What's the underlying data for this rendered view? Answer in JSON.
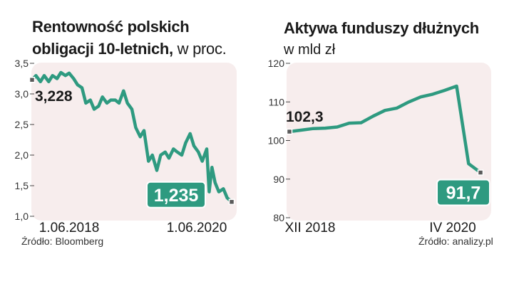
{
  "charts": {
    "left": {
      "title_line1": "Rentowność polskich",
      "title_line2": "obligacji 10-letnich,",
      "title_unit": "w proc.",
      "start_label": "3,228",
      "end_label": "1,235",
      "source": "Źródło: Bloomberg"
    },
    "right": {
      "title": "Aktywa funduszy dłużnych",
      "subtitle": "w mld zł",
      "start_label": "102,3",
      "end_label": "91,7",
      "source": "Źródło: analizy.pl"
    }
  },
  "colors": {
    "line": "#2e9a80",
    "panel_bg": "#f7eded",
    "marker_fill": "#5a5a5a"
  },
  "chart_data": [
    {
      "type": "line",
      "title": "Rentowność polskich obligacji 10-letnich, w proc.",
      "ylim": [
        1.0,
        3.5
      ],
      "yticks": [
        1.0,
        1.5,
        2.0,
        2.5,
        3.0,
        3.5
      ],
      "ytick_labels": [
        "1,0",
        "1,5",
        "2,0",
        "2,5",
        "3,0",
        "3,5"
      ],
      "xlim": [
        "2018-06-01",
        "2020-06-01"
      ],
      "xtick_labels": [
        "1.06.2018",
        "1.06.2020"
      ],
      "series": [
        {
          "x": [
            "2018-06-01",
            "2018-06-15",
            "2018-07-01",
            "2018-07-15",
            "2018-08-01",
            "2018-08-15",
            "2018-09-01",
            "2018-09-15",
            "2018-10-01",
            "2018-10-15",
            "2018-11-01",
            "2018-11-15",
            "2018-12-01",
            "2018-12-15",
            "2019-01-01",
            "2019-01-15",
            "2019-02-01",
            "2019-02-15",
            "2019-03-01",
            "2019-03-15",
            "2019-04-01",
            "2019-04-15",
            "2019-05-01",
            "2019-05-15",
            "2019-06-01",
            "2019-06-15",
            "2019-07-01",
            "2019-07-15",
            "2019-08-01",
            "2019-08-15",
            "2019-09-01",
            "2019-09-15",
            "2019-10-01",
            "2019-10-15",
            "2019-11-01",
            "2019-11-15",
            "2019-12-01",
            "2019-12-15",
            "2020-01-01",
            "2020-01-15",
            "2020-02-01",
            "2020-02-15",
            "2020-03-01",
            "2020-03-10",
            "2020-03-20",
            "2020-04-01",
            "2020-04-15",
            "2020-05-01",
            "2020-05-15",
            "2020-06-01"
          ],
          "y": [
            3.23,
            3.3,
            3.2,
            3.3,
            3.2,
            3.3,
            3.25,
            3.35,
            3.3,
            3.34,
            3.25,
            3.15,
            3.1,
            2.85,
            2.9,
            2.75,
            2.8,
            2.95,
            2.85,
            2.9,
            2.9,
            2.85,
            3.05,
            2.85,
            2.75,
            2.45,
            2.3,
            2.4,
            1.9,
            2.0,
            1.75,
            2.0,
            2.05,
            1.95,
            2.1,
            2.05,
            2.0,
            2.2,
            2.35,
            2.15,
            2.05,
            1.9,
            2.1,
            1.4,
            1.8,
            1.55,
            1.4,
            1.45,
            1.3,
            1.235
          ]
        }
      ]
    },
    {
      "type": "line",
      "title": "Aktywa funduszy dłużnych",
      "ylabel": "w mld zł",
      "ylim": [
        80,
        120
      ],
      "yticks": [
        80,
        90,
        100,
        110,
        120
      ],
      "ytick_labels": [
        "80",
        "90",
        "100",
        "110",
        "120"
      ],
      "xlim": [
        "2018-12",
        "2020-04"
      ],
      "xtick_labels": [
        "XII 2018",
        "IV 2020"
      ],
      "series": [
        {
          "x": [
            "2018-12",
            "2019-01",
            "2019-02",
            "2019-03",
            "2019-04",
            "2019-05",
            "2019-06",
            "2019-07",
            "2019-08",
            "2019-09",
            "2019-10",
            "2019-11",
            "2019-12",
            "2020-01",
            "2020-02",
            "2020-03",
            "2020-04"
          ],
          "y": [
            102.3,
            102.7,
            103.1,
            103.2,
            103.5,
            104.5,
            104.6,
            106.3,
            107.8,
            108.4,
            110.0,
            111.3,
            112.0,
            113.0,
            114.1,
            94.0,
            91.7
          ]
        }
      ]
    }
  ]
}
